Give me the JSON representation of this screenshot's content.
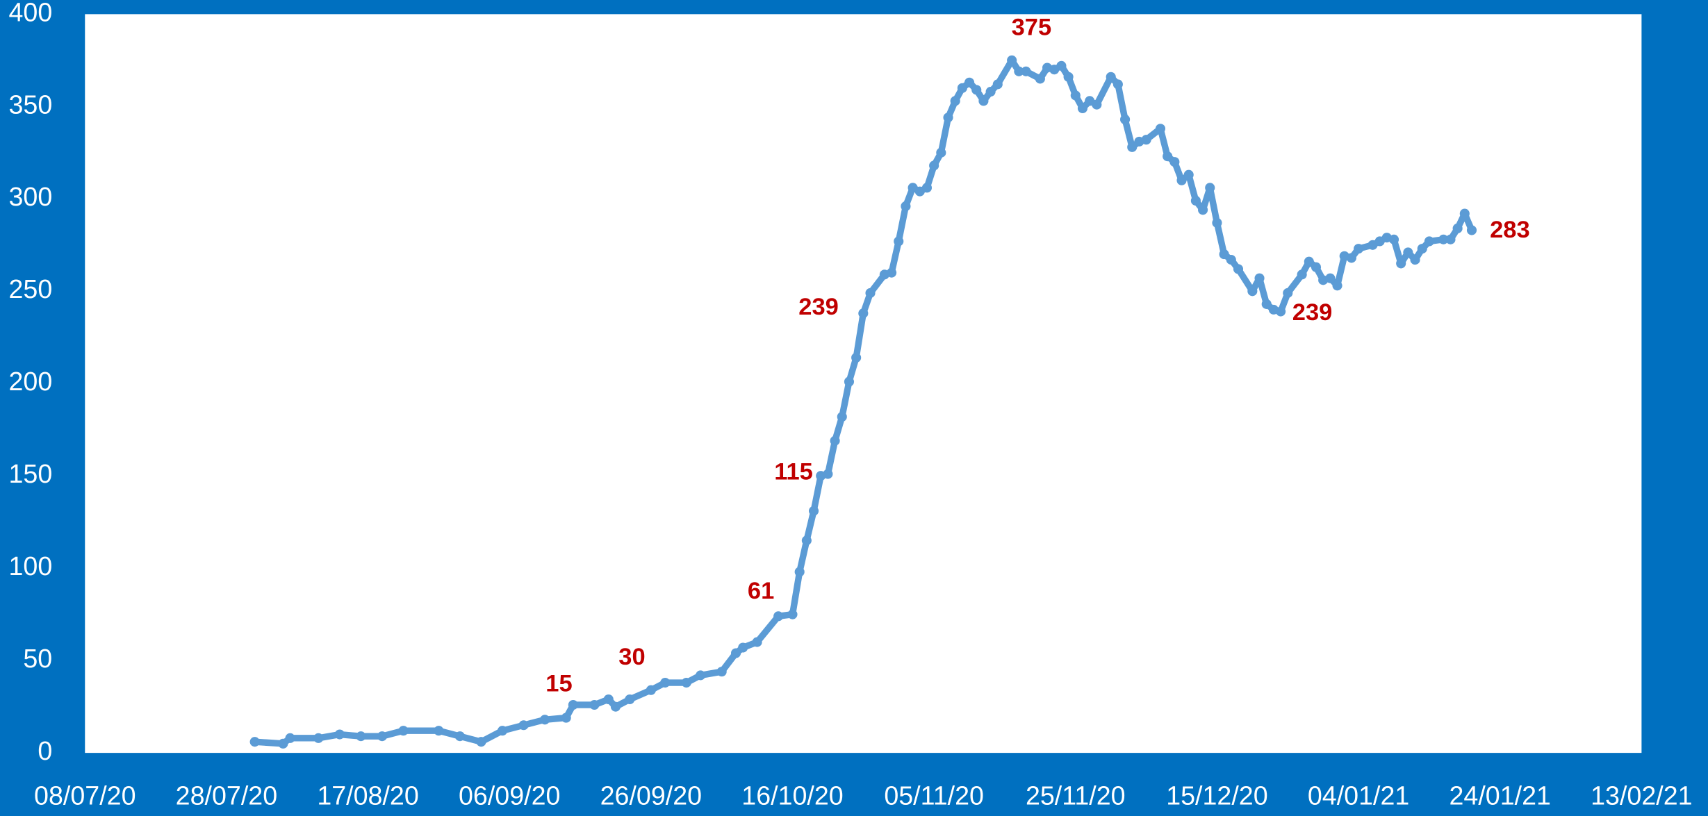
{
  "chart_data": {
    "type": "line",
    "x": [
      "01/08/20",
      "05/08/20",
      "06/08/20",
      "10/08/20",
      "13/08/20",
      "16/08/20",
      "19/08/20",
      "22/08/20",
      "27/08/20",
      "30/08/20",
      "02/09/20",
      "05/09/20",
      "08/09/20",
      "11/09/20",
      "14/09/20",
      "15/09/20",
      "18/09/20",
      "20/09/20",
      "21/09/20",
      "23/09/20",
      "26/09/20",
      "28/09/20",
      "01/10/20",
      "03/10/20",
      "06/10/20",
      "08/10/20",
      "09/10/20",
      "11/10/20",
      "14/10/20",
      "16/10/20",
      "17/10/20",
      "18/10/20",
      "19/10/20",
      "20/10/20",
      "21/10/20",
      "22/10/20",
      "23/10/20",
      "24/10/20",
      "25/10/20",
      "26/10/20",
      "27/10/20",
      "29/10/20",
      "30/10/20",
      "31/10/20",
      "01/11/20",
      "02/11/20",
      "03/11/20",
      "04/11/20",
      "05/11/20",
      "06/11/20",
      "07/11/20",
      "08/11/20",
      "09/11/20",
      "10/11/20",
      "11/11/20",
      "12/11/20",
      "13/11/20",
      "14/11/20",
      "16/11/20",
      "17/11/20",
      "18/11/20",
      "20/11/20",
      "21/11/20",
      "22/11/20",
      "23/11/20",
      "24/11/20",
      "25/11/20",
      "26/11/20",
      "27/11/20",
      "28/11/20",
      "30/11/20",
      "01/12/20",
      "02/12/20",
      "03/12/20",
      "04/12/20",
      "05/12/20",
      "07/12/20",
      "08/12/20",
      "09/12/20",
      "10/12/20",
      "11/12/20",
      "12/12/20",
      "13/12/20",
      "14/12/20",
      "15/12/20",
      "16/12/20",
      "17/12/20",
      "18/12/20",
      "20/12/20",
      "21/12/20",
      "22/12/20",
      "23/12/20",
      "24/12/20",
      "25/12/20",
      "27/12/20",
      "28/12/20",
      "29/12/20",
      "30/12/20",
      "31/12/20",
      "01/01/21",
      "02/01/21",
      "03/01/21",
      "04/01/21",
      "06/01/21",
      "07/01/21",
      "08/01/21",
      "09/01/21",
      "10/01/21",
      "11/01/21",
      "12/01/21",
      "13/01/21",
      "14/01/21",
      "16/01/21",
      "17/01/21",
      "18/01/21",
      "19/01/21",
      "20/01/21"
    ],
    "series": [
      {
        "color": "#5b9bd5",
        "values": [
          6,
          5,
          8,
          8,
          10,
          9,
          9,
          12,
          12,
          9,
          6,
          12,
          15,
          18,
          19,
          26,
          26,
          29,
          25,
          29,
          34,
          38,
          38,
          42,
          44,
          54,
          57,
          60,
          74,
          75,
          98,
          115,
          131,
          150,
          151,
          169,
          182,
          201,
          214,
          238,
          249,
          259,
          260,
          277,
          296,
          306,
          304,
          306,
          318,
          325,
          344,
          353,
          360,
          363,
          359,
          353,
          358,
          362,
          375,
          369,
          369,
          365,
          371,
          370,
          372,
          366,
          356,
          349,
          353,
          351,
          366,
          362,
          343,
          328,
          331,
          332,
          338,
          323,
          320,
          310,
          313,
          299,
          294,
          306,
          287,
          270,
          267,
          262,
          250,
          257,
          243,
          240,
          239,
          249,
          259,
          266,
          263,
          256,
          257,
          253,
          269,
          268,
          273,
          275,
          277,
          279,
          278,
          265,
          271,
          267,
          273,
          277,
          278,
          278,
          284,
          292,
          283
        ]
      }
    ],
    "annotations": [
      {
        "x": "13/09/20",
        "value": 15
      },
      {
        "x": "23/09/20",
        "value": 30
      },
      {
        "x": "10/10/20",
        "value": 61
      },
      {
        "x": "18/10/20",
        "value": 115
      },
      {
        "x": "26/10/20",
        "value": 239
      },
      {
        "x": "16/11/20",
        "value": 375
      },
      {
        "x": "24/12/20",
        "value": 239
      },
      {
        "x": "20/01/21",
        "value": 283
      }
    ],
    "annotation_color": "#c00000",
    "xlim": [
      "08/07/20",
      "13/02/21"
    ],
    "xticks": [
      "08/07/20",
      "28/07/20",
      "17/08/20",
      "06/09/20",
      "26/09/20",
      "16/10/20",
      "05/11/20",
      "25/11/20",
      "15/12/20",
      "04/01/21",
      "24/01/21",
      "13/02/21"
    ],
    "ylim": [
      0,
      400
    ],
    "yticks": [
      0,
      50,
      100,
      150,
      200,
      250,
      300,
      350,
      400
    ],
    "grid": false
  }
}
